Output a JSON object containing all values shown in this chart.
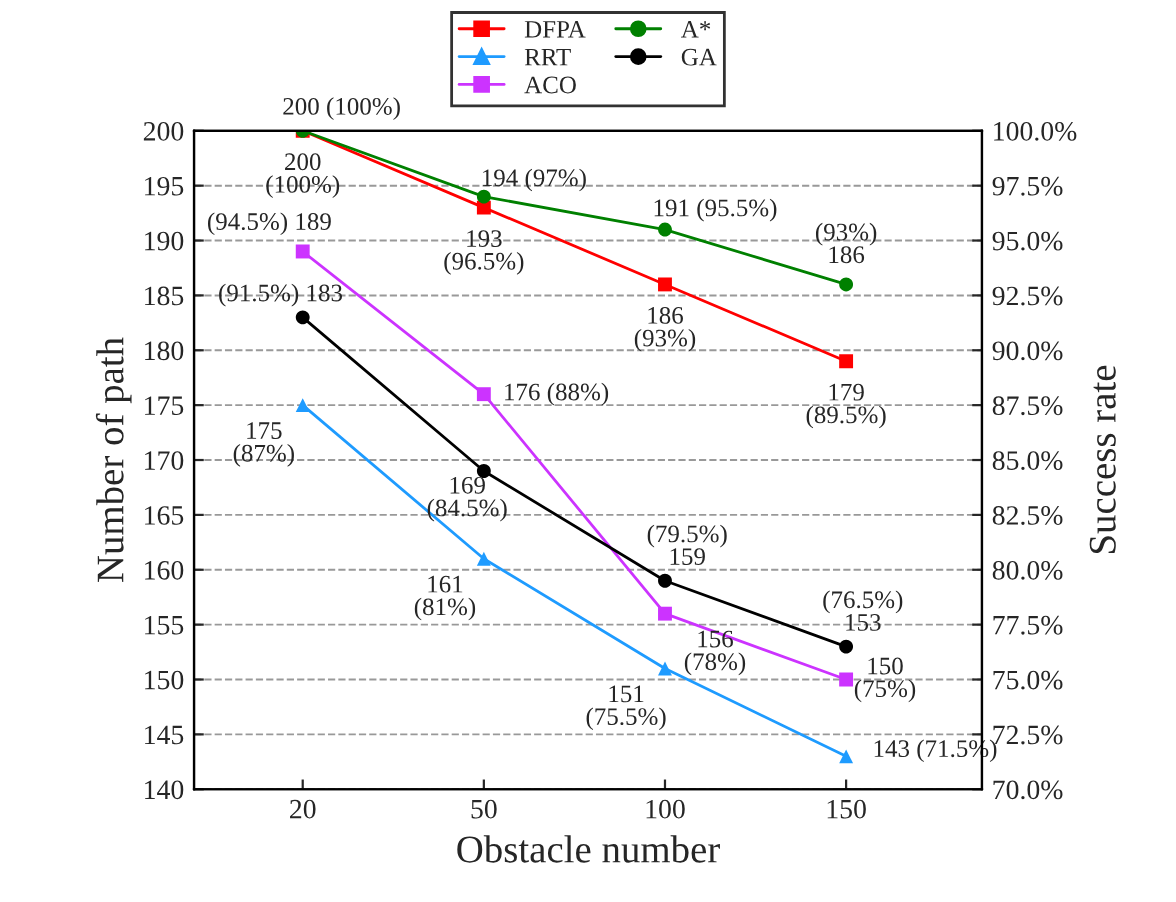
{
  "chart_data": {
    "type": "line",
    "xlabel": "Obstacle number",
    "ylabel": "Number of path",
    "y2label": "Success rate",
    "categories": [
      "20",
      "50",
      "100",
      "150"
    ],
    "series": [
      {
        "name": "DFPA",
        "color": "#ff0000",
        "marker": "square",
        "values": [
          200,
          193,
          186,
          179
        ],
        "value_labels": [
          "200 (100%)",
          "193 (96.5%)",
          "186 (93%)",
          "179 (89.5%)"
        ]
      },
      {
        "name": "RRT",
        "color": "#1e9bff",
        "marker": "triangle",
        "values": [
          175,
          161,
          151,
          143
        ],
        "value_labels": [
          "175 (87%)",
          "161 (81%)",
          "151 (75.5%)",
          "143 (71.5%)"
        ]
      },
      {
        "name": "ACO",
        "color": "#cc33ff",
        "marker": "square",
        "values": [
          189,
          176,
          156,
          150
        ],
        "value_labels": [
          "(94.5%) 189",
          "176 (88%)",
          "156 (78%)",
          "150 (75%)"
        ]
      },
      {
        "name": "A*",
        "color": "#008000",
        "marker": "circle",
        "values": [
          200,
          194,
          191,
          186
        ],
        "value_labels": [
          "200 (100%)",
          "194 (97%)",
          "191 (95.5%)",
          "(93%) 186"
        ]
      },
      {
        "name": "GA",
        "color": "#000000",
        "marker": "circle",
        "values": [
          183,
          169,
          159,
          153
        ],
        "value_labels": [
          "(91.5%) 183",
          "169 (84.5%)",
          "(79.5%) 159",
          "(76.5%) 153"
        ]
      }
    ],
    "ylim": [
      140,
      200
    ],
    "yticks": [
      140,
      145,
      150,
      155,
      160,
      165,
      170,
      175,
      180,
      185,
      190,
      195,
      200
    ],
    "y2lim": [
      70,
      100
    ],
    "y2ticks": [
      {
        "value": 70,
        "label": "70.0%"
      },
      {
        "value": 72.5,
        "label": "72.5%"
      },
      {
        "value": 75,
        "label": "75.0%"
      },
      {
        "value": 77.5,
        "label": "77.5%"
      },
      {
        "value": 80,
        "label": "80.0%"
      },
      {
        "value": 82.5,
        "label": "82.5%"
      },
      {
        "value": 85,
        "label": "85.0%"
      },
      {
        "value": 87.5,
        "label": "87.5%"
      },
      {
        "value": 90,
        "label": "90.0%"
      },
      {
        "value": 92.5,
        "label": "92.5%"
      },
      {
        "value": 95,
        "label": "95.0%"
      },
      {
        "value": 97.5,
        "label": "97.5%"
      },
      {
        "value": 100,
        "label": "100.0%"
      }
    ],
    "grid": "y",
    "legend": "top",
    "line_style": "solid"
  }
}
